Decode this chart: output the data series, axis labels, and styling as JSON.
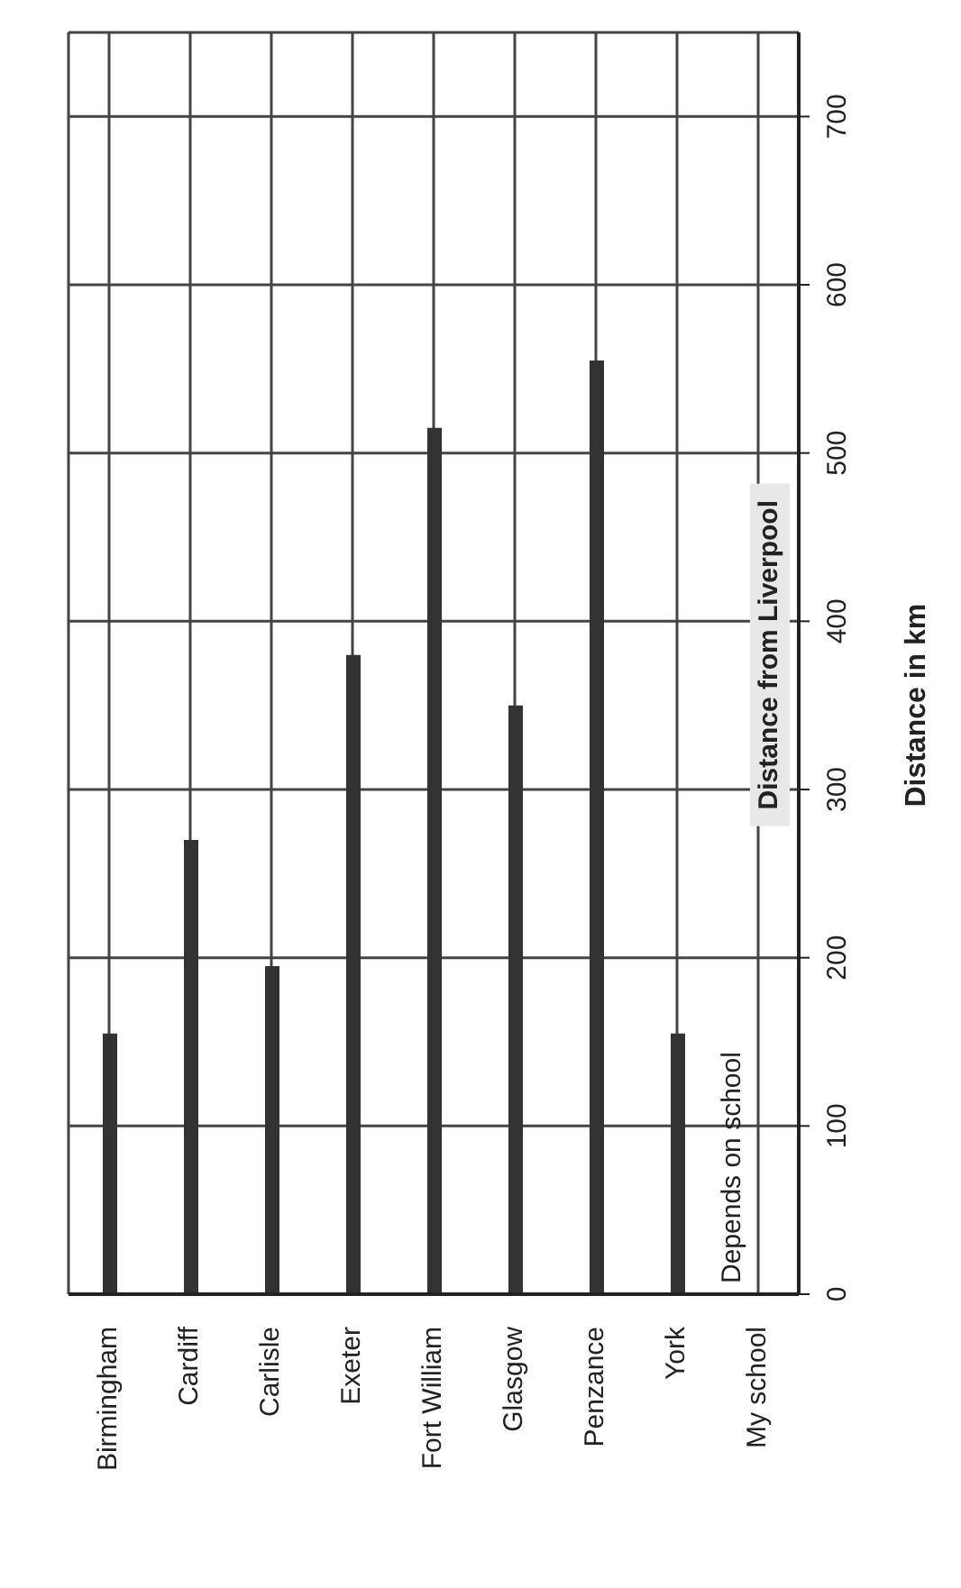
{
  "chart_data": {
    "type": "bar",
    "title": "Distance from Liverpool",
    "ylabel": "Distance in km",
    "categories": [
      "Birmingham",
      "Cardiff",
      "Carlisle",
      "Exeter",
      "Fort William",
      "Glasgow",
      "Penzance",
      "York",
      "My school"
    ],
    "values": [
      155,
      270,
      195,
      380,
      515,
      350,
      555,
      155,
      null
    ],
    "color": "#333333",
    "ylim": [
      0,
      750
    ],
    "yticks": [
      0,
      100,
      200,
      300,
      400,
      500,
      600,
      700
    ],
    "grid": true,
    "annotations": [
      "Depends on school"
    ]
  }
}
